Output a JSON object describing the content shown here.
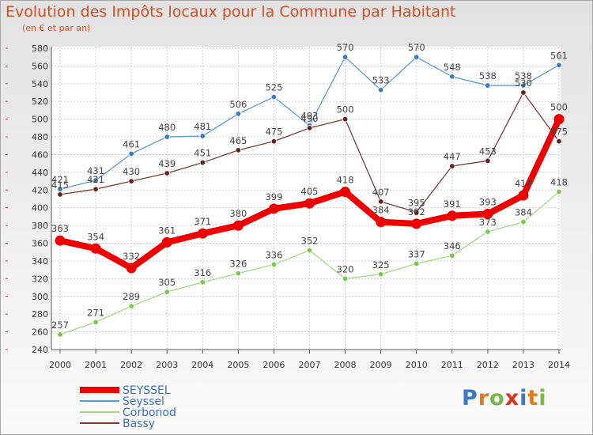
{
  "header": {
    "title": "Evolution des Impôts locaux pour la Commune par Habitant",
    "subtitle": "(en € et par an)"
  },
  "logo": {
    "text": "Proxiti",
    "letter_colors": [
      "#3b79c7",
      "#e6791e",
      "#7ab648",
      "#e0301e",
      "#3b79c7",
      "#e6791e",
      "#7ab648"
    ]
  },
  "chart_data": {
    "type": "line",
    "title": "Evolution des Impôts locaux pour la Commune par Habitant",
    "subtitle": "(en € et par an)",
    "xlabel": "",
    "ylabel": "",
    "x": [
      2000,
      2001,
      2002,
      2003,
      2004,
      2005,
      2006,
      2007,
      2008,
      2009,
      2010,
      2011,
      2012,
      2013,
      2014
    ],
    "x_tick_labels": [
      "2000",
      "2001",
      "2002",
      "2003",
      "2004",
      "2005",
      "2006",
      "2007",
      "2008",
      "2009",
      "2010",
      "2011",
      "2012",
      "2013",
      "2014"
    ],
    "ylim": [
      240,
      580
    ],
    "y_ticks": [
      240,
      260,
      280,
      300,
      320,
      340,
      360,
      380,
      400,
      420,
      440,
      460,
      480,
      500,
      520,
      540,
      560,
      580
    ],
    "grid": true,
    "legend_position": "bottom-left",
    "series": [
      {
        "name": "Seyssel",
        "color": "#5b9bd5",
        "marker_color": "#3a7cbf",
        "values": [
          421,
          431,
          461,
          480,
          481,
          506,
          525,
          493,
          570,
          533,
          570,
          548,
          538,
          538,
          561
        ]
      },
      {
        "name": "Corbonod",
        "color": "#a6d785",
        "marker_color": "#7cc64b",
        "values": [
          257,
          271,
          289,
          305,
          316,
          326,
          336,
          352,
          320,
          325,
          337,
          346,
          373,
          384,
          418
        ]
      },
      {
        "name": "Bassy",
        "color": "#7a3a3a",
        "marker_color": "#6b2020",
        "values": [
          415,
          421,
          430,
          439,
          451,
          465,
          475,
          490,
          500,
          407,
          395,
          447,
          453,
          530,
          475
        ]
      },
      {
        "name": "SEYSSEL",
        "color": "#ee0000",
        "marker_color": "#ee0000",
        "bold": true,
        "values": [
          363,
          354,
          332,
          361,
          371,
          380,
          399,
          405,
          418,
          384,
          382,
          391,
          393,
          414,
          500
        ]
      }
    ],
    "data_labels": {
      "Seyssel": [
        "421",
        "431",
        "461",
        "480",
        "481",
        "506",
        "525",
        "493",
        "570",
        "533",
        "570",
        "548",
        "538",
        "538",
        "561"
      ],
      "Corbonod": [
        "257",
        "271",
        "289",
        "305",
        "316",
        "326",
        "336",
        "352",
        "320",
        "325",
        "337",
        "346",
        "373",
        "384",
        "418"
      ],
      "Bassy": [
        "415",
        "421",
        "430",
        "439",
        "451",
        "465",
        "475",
        "490",
        "500",
        "407",
        "395",
        "447",
        "453",
        "530",
        "475"
      ],
      "SEYSSEL": [
        "363",
        "354",
        "332",
        "361",
        "371",
        "380",
        "399",
        "405",
        "418",
        "384",
        "382",
        "391",
        "393",
        "414",
        "500"
      ]
    },
    "legend": [
      "SEYSSEL",
      "Seyssel",
      "Corbonod",
      "Bassy"
    ]
  }
}
